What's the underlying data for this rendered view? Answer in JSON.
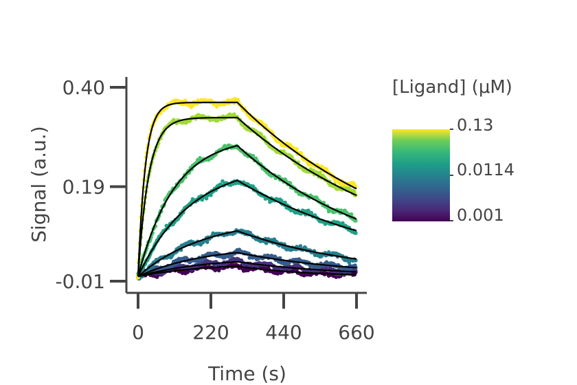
{
  "chart_data": {
    "type": "scatter",
    "xlabel": "Time (s)",
    "ylabel": "Signal (a.u.)",
    "xlim": [
      0,
      660
    ],
    "ylim": [
      -0.01,
      0.4
    ],
    "x_ticks": [
      0,
      220,
      440,
      660
    ],
    "x_tick_labels": [
      "0",
      "220",
      "440",
      "660"
    ],
    "y_ticks": [
      -0.01,
      0.19,
      0.4
    ],
    "y_tick_labels": [
      "-0.01",
      "0.19",
      "0.40"
    ],
    "grid": false,
    "association_end_time": 300,
    "colorbar": {
      "title": "[Ligand] (μM)",
      "tick_labels": [
        "0.13",
        "0.0114",
        "0.001"
      ],
      "scale": "log",
      "colormap": "viridis"
    },
    "series": [
      {
        "color": "#fde725",
        "plateau": 0.368,
        "peak": 0.367,
        "end": 0.185,
        "tau_on": 22,
        "tau_off": 140
      },
      {
        "color": "#a0da39",
        "plateau": 0.336,
        "peak": 0.337,
        "end": 0.172,
        "tau_on": 32,
        "tau_off": 150
      },
      {
        "color": "#4ac16d",
        "plateau": 0.296,
        "peak": 0.262,
        "end": 0.115,
        "tau_on": 110,
        "tau_off": 165
      },
      {
        "color": "#1fa187",
        "plateau": 0.24,
        "peak": 0.189,
        "end": 0.09,
        "tau_on": 160,
        "tau_off": 180
      },
      {
        "color": "#277f8e",
        "plateau": 0.124,
        "peak": 0.097,
        "end": 0.037,
        "tau_on": 200,
        "tau_off": 200
      },
      {
        "color": "#365c8d",
        "plateau": 0.065,
        "peak": 0.052,
        "end": 0.019,
        "tau_on": 200,
        "tau_off": 210
      },
      {
        "color": "#46327e",
        "plateau": 0.04,
        "peak": 0.032,
        "end": 0.01,
        "tau_on": 200,
        "tau_off": 220
      },
      {
        "color": "#440154",
        "plateau": 0.028,
        "peak": 0.023,
        "end": 0.004,
        "tau_on": 200,
        "tau_off": 230
      }
    ]
  }
}
